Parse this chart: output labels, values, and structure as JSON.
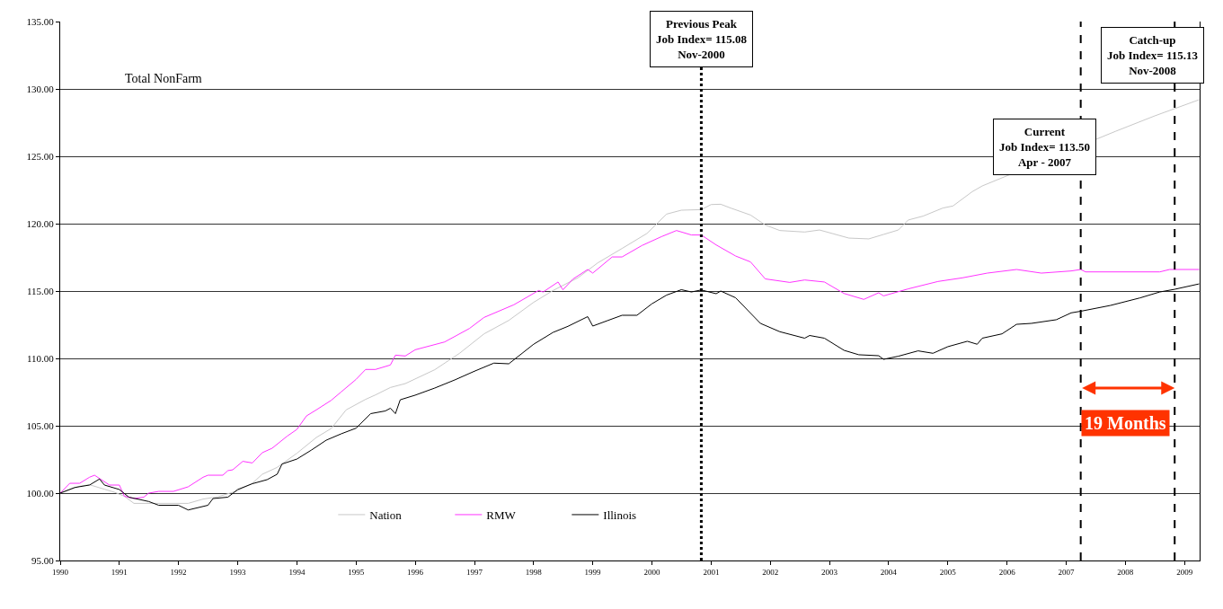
{
  "chart_data": {
    "type": "line",
    "xlim": [
      "1990-01",
      "2009-04-04"
    ],
    "xticks": [
      "1990",
      "1991",
      "1992",
      "1993",
      "1994",
      "1995",
      "1996",
      "1997",
      "1998",
      "1999",
      "2000",
      "2001",
      "2002",
      "2003",
      "2004",
      "2005",
      "2006",
      "2007",
      "2008",
      "2009"
    ],
    "ylim": [
      95,
      135
    ],
    "yticks": [
      {
        "value": 95,
        "label": "95.00"
      },
      {
        "value": 100,
        "label": "100.00"
      },
      {
        "value": 105,
        "label": "105.00"
      },
      {
        "value": 110,
        "label": "110.00"
      },
      {
        "value": 115,
        "label": "115.00"
      },
      {
        "value": 120,
        "label": "120.00"
      },
      {
        "value": 125,
        "label": "125.00"
      },
      {
        "value": 130,
        "label": "130.00"
      },
      {
        "value": 135,
        "label": "135.00"
      }
    ],
    "grid": "y",
    "legend": "bottom left",
    "series": [
      {
        "name": "Nation",
        "color": "#c8c8c8",
        "x": [
          "1990-01",
          "1990-05",
          "1990-07",
          "1990-10",
          "1990-12",
          "1991-02",
          "1991-04",
          "1991-08",
          "1992-03",
          "1992-06",
          "1992-09",
          "1993-01",
          "1993-04",
          "1993-06",
          "1993-09",
          "1994-01",
          "1994-05",
          "1994-08",
          "1994-11",
          "1995-03",
          "1995-05",
          "1995-08",
          "1995-11",
          "1996-05",
          "1996-10",
          "1997-03",
          "1997-08",
          "1998-01",
          "1998-05",
          "1998-10",
          "1999-02",
          "1999-07",
          "1999-12",
          "2000-04",
          "2000-07",
          "2000-11",
          "2001-01",
          "2001-03",
          "2001-05",
          "2001-09",
          "2001-12",
          "2002-03",
          "2002-08",
          "2002-11",
          "2003-05",
          "2003-09",
          "2003-12",
          "2004-03",
          "2004-05",
          "2004-08",
          "2004-12",
          "2005-02",
          "2005-06",
          "2005-08",
          "2007-11",
          "2008-07",
          "2009-04"
        ],
        "values": [
          100.0,
          100.51,
          100.62,
          100.29,
          100.07,
          99.77,
          99.24,
          99.24,
          99.24,
          99.56,
          99.73,
          100.18,
          100.73,
          101.4,
          101.91,
          102.96,
          104.13,
          104.8,
          106.18,
          106.96,
          107.29,
          107.84,
          108.13,
          109.16,
          110.38,
          111.82,
          112.82,
          114.16,
          115.04,
          115.98,
          117.09,
          118.16,
          119.27,
          120.71,
          121.0,
          121.04,
          121.42,
          121.44,
          121.16,
          120.64,
          119.9,
          119.49,
          119.38,
          119.53,
          118.93,
          118.87,
          119.2,
          119.53,
          120.27,
          120.56,
          121.16,
          121.31,
          122.38,
          122.8,
          126.85,
          128.0,
          129.2
        ]
      },
      {
        "name": "RMW",
        "color": "#ff33ff",
        "x": [
          "1990-01",
          "1990-03",
          "1990-05",
          "1990-07",
          "1990-08",
          "1990-11",
          "1991-01",
          "1991-02",
          "1991-04",
          "1991-06",
          "1991-07",
          "1991-09",
          "1991-12",
          "1992-03",
          "1992-06",
          "1992-07",
          "1992-10",
          "1992-11",
          "1992-12",
          "1993-02",
          "1993-04",
          "1993-06",
          "1993-08",
          "1993-11",
          "1994-01",
          "1994-03",
          "1994-05",
          "1994-08",
          "1994-10",
          "1995-01",
          "1995-03",
          "1995-05",
          "1995-08",
          "1995-09",
          "1995-11",
          "1996-01",
          "1996-07",
          "1996-12",
          "1997-03",
          "1997-09",
          "1998-02",
          "1998-03",
          "1998-06",
          "1998-07",
          "1998-09",
          "1998-12",
          "1999-01",
          "1999-05",
          "1999-07",
          "1999-11",
          "2000-03",
          "2000-06",
          "2000-09",
          "2000-11",
          "2001-02",
          "2001-06",
          "2001-09",
          "2001-12",
          "2002-05",
          "2002-08",
          "2002-12",
          "2003-04",
          "2003-08",
          "2003-11",
          "2003-12",
          "2004-05",
          "2004-11",
          "2005-04",
          "2005-09",
          "2006-03",
          "2006-08",
          "2007-02",
          "2007-04",
          "2007-05",
          "2008-08",
          "2008-10",
          "2009-04"
        ],
        "values": [
          100.0,
          100.73,
          100.73,
          101.18,
          101.33,
          100.6,
          100.6,
          99.77,
          99.6,
          99.7,
          100.0,
          100.13,
          100.13,
          100.47,
          101.18,
          101.33,
          101.33,
          101.67,
          101.73,
          102.36,
          102.24,
          103.0,
          103.33,
          104.22,
          104.73,
          105.73,
          106.18,
          106.89,
          107.51,
          108.44,
          109.18,
          109.18,
          109.51,
          110.24,
          110.18,
          110.64,
          111.22,
          112.22,
          113.04,
          113.98,
          115.04,
          114.93,
          115.67,
          115.09,
          115.89,
          116.6,
          116.33,
          117.53,
          117.53,
          118.38,
          119.04,
          119.49,
          119.16,
          119.16,
          118.42,
          117.6,
          117.16,
          115.9,
          115.64,
          115.82,
          115.67,
          114.82,
          114.38,
          114.87,
          114.64,
          115.16,
          115.71,
          115.98,
          116.33,
          116.6,
          116.33,
          116.49,
          116.6,
          116.42,
          116.42,
          116.6,
          116.6
        ]
      },
      {
        "name": "Illinois",
        "color": "#000000",
        "x": [
          "1990-01",
          "1990-04",
          "1990-07",
          "1990-09",
          "1990-10",
          "1991-01",
          "1991-03",
          "1991-07",
          "1991-09",
          "1992-01",
          "1992-03",
          "1992-07",
          "1992-08",
          "1992-11",
          "1993-01",
          "1993-04",
          "1993-07",
          "1993-09",
          "1993-10",
          "1994-01",
          "1994-04",
          "1994-07",
          "1994-10",
          "1995-01",
          "1995-04",
          "1995-07",
          "1995-08",
          "1995-09",
          "1995-10",
          "1996-01",
          "1996-05",
          "1996-09",
          "1997-01",
          "1997-05",
          "1997-08",
          "1998-01",
          "1998-05",
          "1998-08",
          "1998-12",
          "1999-01",
          "1999-04",
          "1999-07",
          "1999-10",
          "2000-01",
          "2000-04",
          "2000-07",
          "2000-09",
          "2000-11",
          "2001-02",
          "2001-03",
          "2001-06",
          "2001-11",
          "2002-03",
          "2002-08",
          "2002-09",
          "2002-12",
          "2003-04",
          "2003-07",
          "2003-11",
          "2003-12",
          "2004-03",
          "2004-07",
          "2004-10",
          "2005-01",
          "2005-05",
          "2005-07",
          "2005-08",
          "2005-12",
          "2006-03",
          "2006-06",
          "2006-11",
          "2007-02",
          "2007-04",
          "2007-10",
          "2008-04",
          "2008-08",
          "2008-11",
          "2009-04"
        ],
        "values": [
          100.0,
          100.42,
          100.6,
          101.05,
          100.6,
          100.27,
          99.7,
          99.38,
          99.1,
          99.1,
          98.75,
          99.1,
          99.6,
          99.7,
          100.27,
          100.7,
          101.0,
          101.4,
          102.16,
          102.53,
          103.2,
          103.93,
          104.4,
          104.82,
          105.9,
          106.1,
          106.3,
          105.9,
          106.93,
          107.27,
          107.8,
          108.4,
          109.05,
          109.65,
          109.6,
          111.05,
          111.93,
          112.38,
          113.1,
          112.4,
          112.8,
          113.2,
          113.2,
          114.05,
          114.7,
          115.1,
          114.93,
          115.08,
          114.8,
          115.0,
          114.5,
          112.6,
          111.98,
          111.5,
          111.7,
          111.5,
          110.6,
          110.27,
          110.2,
          109.93,
          110.16,
          110.56,
          110.38,
          110.87,
          111.27,
          111.05,
          111.5,
          111.82,
          112.53,
          112.6,
          112.87,
          113.38,
          113.5,
          113.93,
          114.49,
          114.93,
          115.13,
          115.53
        ]
      }
    ],
    "ref_lines": [
      {
        "axis": "x",
        "value": "2000-11",
        "label": "Previous Peak\nJob Index= 115.08\nNov-2000",
        "color": "#000000",
        "line_style": "dotted"
      },
      {
        "axis": "x",
        "value": "2007-04",
        "label": "Current\nJob Index= 113.50\nApr - 2007",
        "color": "#000000",
        "line_style": "dashed"
      },
      {
        "axis": "x",
        "value": "2008-11",
        "label": "Catch-up\nJob Index= 115.13\nNov-2008",
        "color": "#000000",
        "line_style": "dashed"
      }
    ],
    "annotations": [
      "Total NonFarm",
      "19 Months"
    ]
  }
}
